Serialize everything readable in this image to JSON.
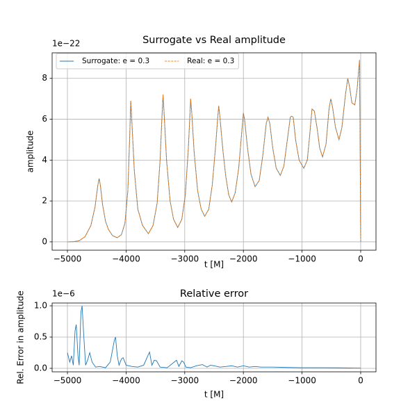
{
  "chart_data": [
    {
      "type": "line",
      "title": "Surrogate vs Real amplitude",
      "x_label": "t [M]",
      "y_label": "amplitude",
      "y_offset_label": "1e−22",
      "x": [
        -5000,
        -4900,
        -4800,
        -4700,
        -4600,
        -4530,
        -4480,
        -4460,
        -4440,
        -4400,
        -4350,
        -4300,
        -4230,
        -4150,
        -4080,
        -4020,
        -3970,
        -3940,
        -3920,
        -3900,
        -3860,
        -3800,
        -3720,
        -3620,
        -3540,
        -3470,
        -3420,
        -3390,
        -3370,
        -3350,
        -3310,
        -3250,
        -3190,
        -3120,
        -3050,
        -2990,
        -2940,
        -2910,
        -2900,
        -2880,
        -2840,
        -2780,
        -2720,
        -2660,
        -2590,
        -2530,
        -2470,
        -2440,
        -2420,
        -2400,
        -2350,
        -2300,
        -2250,
        -2200,
        -2140,
        -2080,
        -2030,
        -2000,
        -1980,
        -1930,
        -1870,
        -1800,
        -1730,
        -1670,
        -1610,
        -1580,
        -1550,
        -1500,
        -1440,
        -1370,
        -1310,
        -1250,
        -1200,
        -1180,
        -1150,
        -1110,
        -1050,
        -970,
        -910,
        -870,
        -830,
        -790,
        -740,
        -700,
        -650,
        -590,
        -540,
        -510,
        -480,
        -430,
        -370,
        -320,
        -260,
        -220,
        -190,
        -150,
        -100,
        -60,
        -20,
        -10,
        0
      ],
      "series": [
        {
          "name": "Surrogate: e = 0.3",
          "color": "#1f77b4",
          "linestyle": "solid",
          "values": [
            0,
            0.01,
            0.05,
            0.25,
            0.8,
            1.7,
            2.8,
            3.1,
            2.8,
            1.8,
            1.0,
            0.6,
            0.3,
            0.2,
            0.35,
            0.9,
            2.5,
            5.0,
            6.9,
            5.8,
            3.5,
            1.6,
            0.8,
            0.4,
            0.8,
            1.9,
            4.0,
            6.0,
            7.2,
            6.2,
            4.0,
            2.0,
            1.1,
            0.7,
            1.1,
            2.3,
            4.5,
            6.3,
            7.0,
            6.3,
            4.4,
            2.5,
            1.6,
            1.25,
            1.6,
            2.8,
            4.8,
            6.0,
            6.65,
            6.1,
            4.5,
            3.2,
            2.3,
            1.95,
            2.4,
            3.6,
            5.3,
            6.3,
            6.0,
            4.6,
            3.3,
            2.7,
            3.0,
            4.2,
            5.8,
            6.1,
            5.8,
            4.6,
            3.6,
            3.25,
            3.7,
            5.0,
            6.1,
            6.15,
            6.1,
            5.0,
            4.0,
            3.6,
            4.0,
            5.2,
            6.5,
            6.4,
            5.5,
            4.6,
            4.15,
            4.8,
            6.5,
            7.0,
            6.6,
            5.6,
            5.0,
            5.6,
            7.2,
            8.0,
            7.6,
            6.8,
            6.7,
            7.5,
            8.9,
            5.0,
            0
          ]
        },
        {
          "name": "Real: e = 0.3",
          "color": "#ff7f0e",
          "linestyle": "dashed",
          "values": [
            0,
            0.01,
            0.05,
            0.25,
            0.8,
            1.7,
            2.8,
            3.1,
            2.8,
            1.8,
            1.0,
            0.6,
            0.3,
            0.2,
            0.35,
            0.9,
            2.5,
            5.0,
            6.9,
            5.8,
            3.5,
            1.6,
            0.8,
            0.4,
            0.8,
            1.9,
            4.0,
            6.0,
            7.2,
            6.2,
            4.0,
            2.0,
            1.1,
            0.7,
            1.1,
            2.3,
            4.5,
            6.3,
            7.0,
            6.3,
            4.4,
            2.5,
            1.6,
            1.25,
            1.6,
            2.8,
            4.8,
            6.0,
            6.65,
            6.1,
            4.5,
            3.2,
            2.3,
            1.95,
            2.4,
            3.6,
            5.3,
            6.3,
            6.0,
            4.6,
            3.3,
            2.7,
            3.0,
            4.2,
            5.8,
            6.1,
            5.8,
            4.6,
            3.6,
            3.25,
            3.7,
            5.0,
            6.1,
            6.15,
            6.1,
            5.0,
            4.0,
            3.6,
            4.0,
            5.2,
            6.5,
            6.4,
            5.5,
            4.6,
            4.15,
            4.8,
            6.5,
            7.0,
            6.6,
            5.6,
            5.0,
            5.6,
            7.2,
            8.0,
            7.6,
            6.8,
            6.7,
            7.5,
            8.9,
            5.0,
            0
          ]
        }
      ],
      "xlim": [
        -5261,
        261
      ],
      "ylim": [
        -0.41,
        9.25
      ],
      "xticks": [
        {
          "value": -5000,
          "label": "−5000"
        },
        {
          "value": -4000,
          "label": "−4000"
        },
        {
          "value": -3000,
          "label": "−3000"
        },
        {
          "value": -2000,
          "label": "−2000"
        },
        {
          "value": -1000,
          "label": "−1000"
        },
        0
      ],
      "yticks": [
        0,
        2,
        4,
        6,
        8
      ],
      "grid": true,
      "legend": "upper left"
    },
    {
      "type": "line",
      "title": "Relative error",
      "x_label": "t [M]",
      "y_label": "Rel. Error in amplitude",
      "y_offset_label": "1e−6",
      "x": [
        -5000,
        -4960,
        -4930,
        -4900,
        -4870,
        -4850,
        -4820,
        -4800,
        -4770,
        -4750,
        -4720,
        -4690,
        -4650,
        -4620,
        -4580,
        -4520,
        -4450,
        -4350,
        -4270,
        -4200,
        -4180,
        -4150,
        -4120,
        -4080,
        -4050,
        -4000,
        -3900,
        -3800,
        -3700,
        -3630,
        -3600,
        -3560,
        -3520,
        -3480,
        -3420,
        -3300,
        -3180,
        -3140,
        -3100,
        -3050,
        -3020,
        -2980,
        -2900,
        -2800,
        -2700,
        -2620,
        -2560,
        -2500,
        -2400,
        -2300,
        -2200,
        -2100,
        -2000,
        -1900,
        -1800,
        -1700,
        -1500,
        -1300,
        -1000,
        -700,
        -400,
        -200,
        0
      ],
      "series": [
        {
          "name": "Relative error",
          "color": "#1f77b4",
          "linestyle": "solid",
          "values": [
            0.25,
            0.1,
            0.2,
            0.05,
            0.6,
            0.7,
            0.2,
            0.05,
            0.9,
            1.0,
            0.5,
            0.05,
            0.15,
            0.25,
            0.1,
            0.02,
            0.03,
            0.01,
            0.1,
            0.45,
            0.5,
            0.2,
            0.05,
            0.15,
            0.17,
            0.05,
            0.03,
            0.02,
            0.05,
            0.2,
            0.26,
            0.05,
            0.13,
            0.12,
            0.02,
            0.01,
            0.1,
            0.13,
            0.03,
            0.12,
            0.1,
            0.02,
            0.01,
            0.04,
            0.06,
            0.02,
            0.05,
            0.04,
            0.02,
            0.03,
            0.04,
            0.02,
            0.04,
            0.02,
            0.03,
            0.02,
            0.02,
            0.015,
            0.01,
            0.01,
            0.008,
            0.005,
            0.003
          ]
        }
      ],
      "xlim": [
        -5261,
        261
      ],
      "ylim": [
        -0.056,
        1.045
      ],
      "xticks": [
        {
          "value": -5000,
          "label": "−5000"
        },
        {
          "value": -4000,
          "label": "−4000"
        },
        {
          "value": -3000,
          "label": "−3000"
        },
        {
          "value": -2000,
          "label": "−2000"
        },
        {
          "value": -1000,
          "label": "−1000"
        },
        0
      ],
      "yticks": [
        {
          "value": 0,
          "label": "0.0"
        },
        0.5,
        {
          "value": 1,
          "label": "1.0"
        }
      ],
      "grid": true
    }
  ]
}
